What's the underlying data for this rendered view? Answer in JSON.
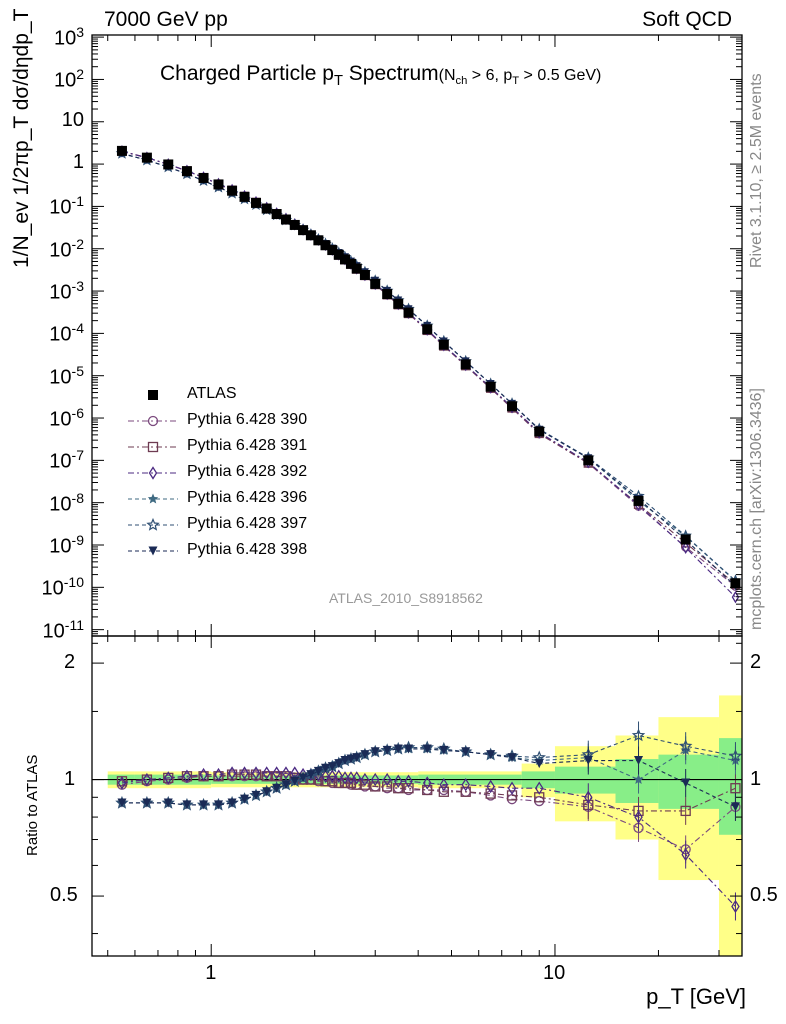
{
  "header": {
    "left": "7000 GeV pp",
    "right": "Soft QCD"
  },
  "title": {
    "main": "Charged Particle p",
    "main_sub": "T",
    "main_rest": " Spectrum",
    "cond": "(N",
    "cond_sub1": "ch",
    "cond_mid": " > 6, p",
    "cond_sub2": "T",
    "cond_end": " > 0.5 GeV)"
  },
  "side_labels": {
    "rivet": "Rivet 3.1.10, ≥ 2.5M events",
    "mcplots": "mcplots.cern.ch [arXiv:1306.3436]"
  },
  "analysis_id": "ATLAS_2010_S8918562",
  "axes": {
    "ylabel_main": "1/N_ev 1/2πp_T dσ/dηdp_T",
    "ylabel_ratio": "Ratio to ATLAS",
    "xlabel": "p_T  [GeV]",
    "x_ticks": [
      "1",
      "10"
    ],
    "y_ticks_main": [
      "10^3",
      "10^2",
      "10",
      "1",
      "10^-1",
      "10^-2",
      "10^-3",
      "10^-4",
      "10^-5",
      "10^-6",
      "10^-7",
      "10^-8",
      "10^-9",
      "10^-10",
      "10^-11"
    ],
    "y_ticks_ratio": [
      "2",
      "1",
      "0.5"
    ]
  },
  "legend": [
    {
      "label": "ATLAS",
      "marker": "square-filled",
      "color": "#000000"
    },
    {
      "label": "Pythia 6.428 390",
      "marker": "circle-open",
      "color": "#7b4a7e"
    },
    {
      "label": "Pythia 6.428 391",
      "marker": "square-open",
      "color": "#6e3b52"
    },
    {
      "label": "Pythia 6.428 392",
      "marker": "diamond-open",
      "color": "#4b2a82"
    },
    {
      "label": "Pythia 6.428 396",
      "marker": "star-filled",
      "color": "#3f6a82"
    },
    {
      "label": "Pythia 6.428 397",
      "marker": "star-open",
      "color": "#2f4f73"
    },
    {
      "label": "Pythia 6.428 398",
      "marker": "triangle-down-filled",
      "color": "#1a2a55"
    }
  ],
  "chart_data": {
    "type": "scatter",
    "x_scale": "log",
    "xlim": [
      0.45,
      35
    ],
    "ylim_main": [
      1e-11,
      1000
    ],
    "y_scale_main": "log",
    "ylim_ratio": [
      0.35,
      2.35
    ],
    "y_scale_ratio": "log",
    "x": [
      0.55,
      0.65,
      0.75,
      0.85,
      0.95,
      1.05,
      1.15,
      1.25,
      1.35,
      1.45,
      1.55,
      1.65,
      1.75,
      1.85,
      1.95,
      2.05,
      2.15,
      2.25,
      2.35,
      2.45,
      2.55,
      2.65,
      2.8,
      3.0,
      3.25,
      3.5,
      3.75,
      4.25,
      4.75,
      5.5,
      6.5,
      7.5,
      9.0,
      12.5,
      17.5,
      24.0,
      33.5
    ],
    "atlas": [
      2.05,
      1.42,
      0.98,
      0.68,
      0.47,
      0.33,
      0.235,
      0.168,
      0.121,
      0.089,
      0.066,
      0.049,
      0.0365,
      0.0275,
      0.0208,
      0.0158,
      0.0121,
      0.0093,
      0.0072,
      0.0056,
      0.0044,
      0.0034,
      0.0024,
      0.00148,
      0.00085,
      0.0005,
      0.00031,
      0.000125,
      5.4e-05,
      1.85e-05,
      5.5e-06,
      1.9e-06,
      4.8e-07,
      1e-07,
      1.1e-08,
      1.35e-09,
      1.25e-10
    ],
    "band_bins": [
      {
        "lo": 0.5,
        "hi": 0.6,
        "stat": 0.03,
        "tot": 0.05
      },
      {
        "lo": 0.6,
        "hi": 1.0,
        "stat": 0.03,
        "tot": 0.05
      },
      {
        "lo": 1.0,
        "hi": 2.0,
        "stat": 0.025,
        "tot": 0.045
      },
      {
        "lo": 2.0,
        "hi": 4.0,
        "stat": 0.025,
        "tot": 0.045
      },
      {
        "lo": 4.0,
        "hi": 8.0,
        "stat": 0.03,
        "tot": 0.05
      },
      {
        "lo": 8.0,
        "hi": 10.0,
        "stat": 0.05,
        "tot": 0.1
      },
      {
        "lo": 10.0,
        "hi": 15.0,
        "stat": 0.08,
        "tot": 0.22
      },
      {
        "lo": 15.0,
        "hi": 20.0,
        "stat": 0.13,
        "tot": 0.3
      },
      {
        "lo": 20.0,
        "hi": 30.0,
        "stat": 0.16,
        "tot": 0.45
      },
      {
        "lo": 30.0,
        "hi": 40.0,
        "stat": 0.28,
        "tot": 0.65
      }
    ],
    "series": [
      {
        "name": "Pythia 6.428 390",
        "ratio": [
          0.97,
          0.99,
          1.0,
          1.01,
          1.02,
          1.02,
          1.02,
          1.02,
          1.02,
          1.02,
          1.02,
          1.01,
          1.0,
          1.0,
          1.0,
          0.99,
          0.99,
          0.98,
          0.98,
          0.98,
          0.97,
          0.97,
          0.96,
          0.96,
          0.95,
          0.95,
          0.94,
          0.94,
          0.94,
          0.93,
          0.91,
          0.89,
          0.88,
          0.85,
          0.75,
          0.66,
          0.85
        ]
      },
      {
        "name": "Pythia 6.428 391",
        "ratio": [
          0.99,
          1.0,
          1.01,
          1.02,
          1.02,
          1.02,
          1.03,
          1.03,
          1.03,
          1.02,
          1.02,
          1.02,
          1.01,
          1.0,
          1.0,
          1.0,
          0.99,
          0.99,
          0.98,
          0.98,
          0.98,
          0.97,
          0.97,
          0.96,
          0.96,
          0.95,
          0.95,
          0.94,
          0.93,
          0.93,
          0.92,
          0.91,
          0.9,
          0.86,
          0.83,
          0.83,
          0.95
        ]
      },
      {
        "name": "Pythia 6.428 392",
        "ratio": [
          0.98,
          1.0,
          1.01,
          1.02,
          1.03,
          1.03,
          1.04,
          1.04,
          1.04,
          1.04,
          1.04,
          1.04,
          1.04,
          1.03,
          1.03,
          1.03,
          1.02,
          1.02,
          1.02,
          1.01,
          1.01,
          1.01,
          1.0,
          1.0,
          1.0,
          0.99,
          0.99,
          0.98,
          0.97,
          0.97,
          0.96,
          0.95,
          0.95,
          0.9,
          0.8,
          0.64,
          0.47
        ]
      },
      {
        "name": "Pythia 6.428 396",
        "ratio": [
          0.87,
          0.87,
          0.87,
          0.86,
          0.86,
          0.86,
          0.87,
          0.89,
          0.91,
          0.93,
          0.95,
          0.97,
          0.99,
          1.01,
          1.03,
          1.05,
          1.07,
          1.08,
          1.1,
          1.12,
          1.13,
          1.14,
          1.16,
          1.18,
          1.19,
          1.2,
          1.2,
          1.2,
          1.19,
          1.18,
          1.16,
          1.14,
          1.12,
          1.14,
          1.0,
          1.19,
          1.12
        ]
      },
      {
        "name": "Pythia 6.428 397",
        "ratio": [
          0.87,
          0.87,
          0.87,
          0.86,
          0.86,
          0.86,
          0.87,
          0.89,
          0.91,
          0.93,
          0.95,
          0.97,
          0.99,
          1.01,
          1.03,
          1.05,
          1.07,
          1.08,
          1.1,
          1.12,
          1.13,
          1.14,
          1.16,
          1.18,
          1.19,
          1.2,
          1.21,
          1.21,
          1.2,
          1.18,
          1.16,
          1.15,
          1.14,
          1.16,
          1.3,
          1.22,
          1.15
        ]
      },
      {
        "name": "Pythia 6.428 398",
        "ratio": [
          0.87,
          0.87,
          0.87,
          0.86,
          0.86,
          0.86,
          0.87,
          0.89,
          0.91,
          0.93,
          0.95,
          0.97,
          0.99,
          1.01,
          1.03,
          1.05,
          1.07,
          1.08,
          1.1,
          1.12,
          1.13,
          1.14,
          1.16,
          1.18,
          1.19,
          1.2,
          1.2,
          1.2,
          1.19,
          1.18,
          1.16,
          1.14,
          1.1,
          1.12,
          1.12,
          0.98,
          0.85
        ]
      }
    ],
    "colors": {
      "band_tot": "#ffff88",
      "band_stat": "#88ee88",
      "series": [
        "#7b4a7e",
        "#6e3b52",
        "#4b2a82",
        "#3f6a82",
        "#2f4f73",
        "#1a2a55"
      ]
    }
  }
}
